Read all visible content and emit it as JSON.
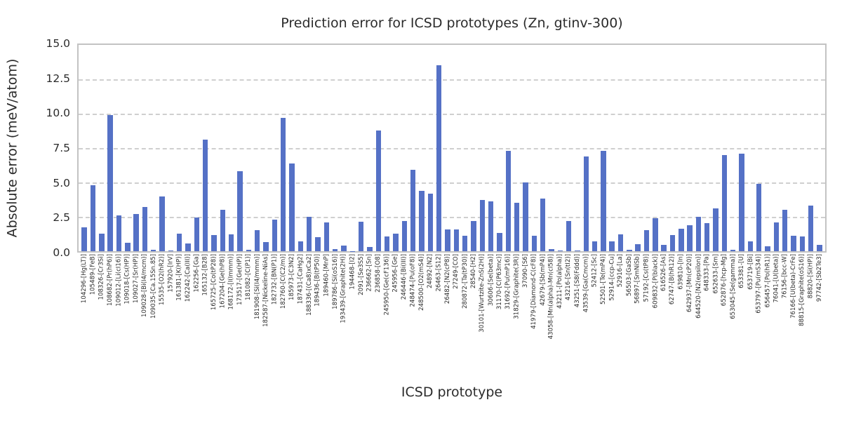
{
  "chart_data": {
    "type": "bar",
    "title": "Prediction error for ICSD prototypes (Zn, gtinv-300)",
    "xlabel": "ICSD prototype",
    "ylabel": "Absolute error (meV/atom)",
    "ylim": [
      0,
      15
    ],
    "yticks": [
      0.0,
      2.5,
      5.0,
      7.5,
      10.0,
      12.5,
      15.0
    ],
    "ytick_labels": [
      "0.0",
      "2.5",
      "5.0",
      "7.5",
      "10.0",
      "12.5",
      "15.0"
    ],
    "grid": true,
    "legend": false,
    "bar_color": "#5571c6",
    "grid_color": "#cfcfcf",
    "spine_color": "#c3c3c3",
    "text_color": "#2b2b2b",
    "categories": [
      "104296-[Hg(LT)]",
      "105489-[FeB]",
      "108326-[Cr3Si]",
      "108682-[Pr(hP6)]",
      "109012-[Li(cI16)]",
      "109018-[Cs(HP)]",
      "109027-[Sr(HP)]",
      "109028-[Bi(I4/mcm)]",
      "109035-[Ca.15Sn.85]",
      "15535-[O2(hR2)]",
      "157920-[IrV]",
      "161381-[K(HP)]",
      "162242-[Ca(III)]",
      "162256-[Ga]",
      "165132-[B28]",
      "165725-[Co(tP28)]",
      "167204-[Ge(hP8)]",
      "168172-[I(Immm)]",
      "173517-[Ge(HP)]",
      "181082-[C(P1)]",
      "181908-[Si(I4/mmm)]",
      "182587-[Nickeline-NiAs]",
      "182732-[BN(P1)]",
      "182760-[C(C2/m)]",
      "185973-[C3N2]",
      "187431-[CaHg2]",
      "188336-[(Ca8)xCa2]",
      "189436-[B(tP50)]",
      "189460-[MnP]",
      "189786-[Si(oS16)]",
      "193439-[Graphite(2H)]",
      "194468-[I2]",
      "2091-[Se3S5]",
      "236662-[Sn]",
      "236858-[O8]",
      "245950-[Ge(cF136)]",
      "245956-[Ge]",
      "246446-[Bi(III)]",
      "248474-[Pu(oF8)]",
      "248500-[O2(mS4)]",
      "24892-[N2]",
      "26463-[S12]",
      "26482-[N2(cP8)]",
      "27249-[CO]",
      "280872-[Ta(tP30)]",
      "28540-[H2]",
      "30101-[Wurtzite-ZnS(2H)]",
      "30606-[Se(beta)]",
      "31170-[C(P63mc)]",
      "31692-[Pu(mP16)]",
      "31829-[Graphite(3R)]",
      "37090-[S6]",
      "41979-[Diamond-C(cF8)]",
      "42679-[Sb(mP4)]",
      "43058-[Mn(alpha)-Mn(cI58)]",
      "43211-[Po(alpha)]",
      "43216-[Sn(tI2)]",
      "43251-[S8(Fddd)]",
      "43539-[Ga(Cmcm)]",
      "52412-[Sc]",
      "52501-[Te(mP4)]",
      "52914-[ccp-Cu]",
      "52916-[La]",
      "56503-[GaSb]",
      "56897-[SmNiSb]",
      "57192-[Cs(tP8)]",
      "609832-[P(black)]",
      "616526-[As]",
      "62747-[B(hR12)]",
      "639810-[In]",
      "642937-[Mn(cP20)]",
      "644520-[N2(epsilon)]",
      "648333-[Pa]",
      "652633-[Sm]",
      "652876-[hcp-Mg]",
      "653045-[Se(gamma)]",
      "653381-[U]",
      "653719-[Bi]",
      "653797-[Pu(mS34)]",
      "656457-[Po(hR1)]",
      "76041-[U(beta)]",
      "76156-[bcc-W]",
      "76166-[U(beta)-CrFe]",
      "88815-[Graphite(oS16)]",
      "88820-[Si(HP)]",
      "97742-[Sb2Te3]"
    ],
    "values": [
      1.75,
      4.8,
      1.3,
      9.9,
      2.6,
      0.6,
      2.7,
      3.2,
      0.1,
      4.0,
      0.05,
      1.3,
      0.55,
      2.45,
      8.1,
      1.15,
      3.0,
      1.2,
      5.8,
      0.1,
      1.55,
      0.65,
      2.3,
      9.7,
      6.4,
      0.7,
      2.5,
      1.0,
      2.1,
      0.15,
      0.4,
      0.02,
      2.15,
      0.3,
      8.8,
      1.05,
      1.3,
      2.2,
      5.9,
      4.4,
      4.2,
      13.5,
      1.6,
      1.6,
      1.1,
      2.2,
      3.7,
      3.6,
      1.35,
      7.3,
      3.5,
      5.0,
      1.1,
      3.85,
      0.15,
      0.05,
      2.2,
      0.05,
      6.9,
      0.7,
      7.3,
      0.7,
      1.2,
      0.1,
      0.5,
      1.55,
      2.4,
      0.45,
      1.15,
      1.65,
      1.9,
      2.5,
      2.05,
      3.1,
      7.0,
      0.1,
      7.1,
      0.7,
      4.9,
      0.35,
      2.1,
      3.0,
      1.1,
      1.05,
      3.3,
      0.45
    ]
  }
}
